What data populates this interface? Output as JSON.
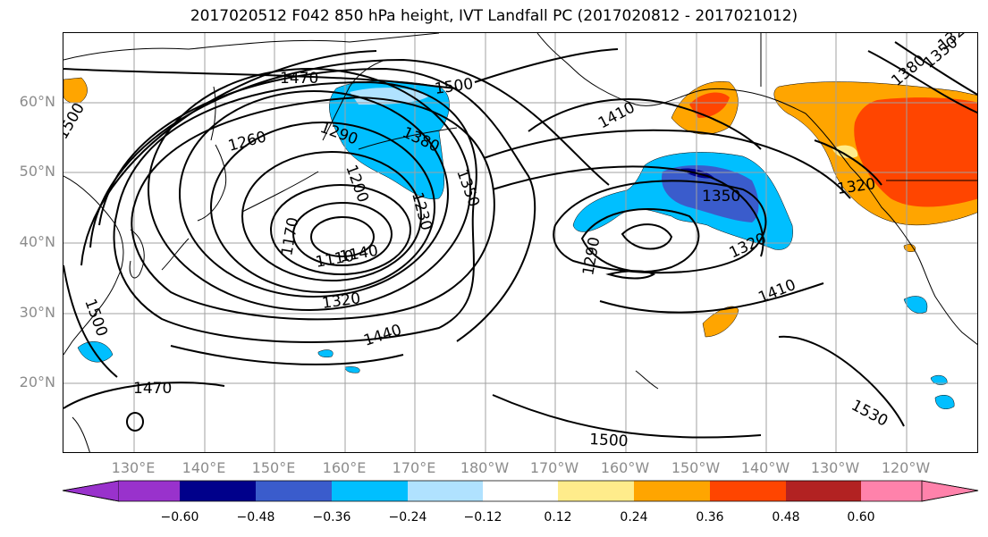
{
  "title": "2017020512 F042 850 hPa height, IVT Landfall PC (2017020812 - 2017021012)",
  "map": {
    "lat_labels": [
      "60°N",
      "50°N",
      "40°N",
      "30°N",
      "20°N"
    ],
    "lon_labels": [
      "130°E",
      "140°E",
      "150°E",
      "160°E",
      "170°E",
      "180°W",
      "170°W",
      "160°W",
      "150°W",
      "140°W",
      "130°W",
      "120°W"
    ],
    "contour_labels": [
      "1470",
      "1500",
      "1260",
      "1290",
      "1200",
      "1380",
      "1350",
      "1230",
      "1170",
      "1110",
      "1140",
      "1320",
      "1440",
      "1410",
      "1350",
      "1320",
      "1290",
      "1410",
      "1320",
      "1350",
      "1380",
      "1320",
      "1500",
      "1470",
      "1500",
      "1530",
      "1500"
    ]
  },
  "colorbar": {
    "tick_labels": [
      "−0.60",
      "−0.48",
      "−0.36",
      "−0.24",
      "−0.12",
      "0.12",
      "0.24",
      "0.36",
      "0.48",
      "0.60"
    ],
    "colors": [
      "#9932cc",
      "#00008b",
      "#3a5ccc",
      "#00bfff",
      "#b0e2ff",
      "#ffffff",
      "#ffec8b",
      "#ffa500",
      "#ff4500",
      "#b22222",
      "#ff82ab"
    ]
  }
}
